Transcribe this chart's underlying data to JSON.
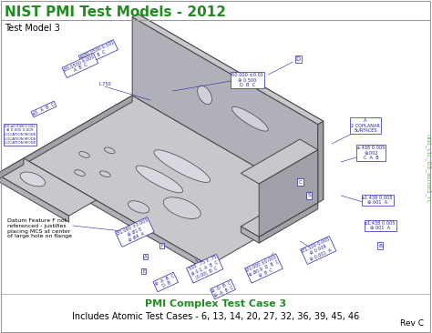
{
  "title": "NIST PMI Test Models - 2012",
  "title_color": "#228B22",
  "title_fontsize": 11,
  "subtitle": "Test Model 3",
  "subtitle_fontsize": 7,
  "footer_line1": "PMI Complex Test Case 3",
  "footer_line1_color": "#228B22",
  "footer_line1_fontsize": 8,
  "footer_line2": "Includes Atomic Test Cases - 6, 13, 14, 20, 27, 32, 36, 39, 45, 46",
  "footer_line2_fontsize": 7,
  "rev_text": "Rev C",
  "rev_fontsize": 6.5,
  "watermark_text": "nist_ctc_03_asme1_rc",
  "watermark_fontsize": 5,
  "bg_color": "#FFFFFF",
  "border_color": "#999999",
  "part_color_top": "#C8C8CC",
  "part_color_front": "#B0B0B8",
  "part_color_side": "#A0A0A8",
  "part_color_dark": "#909098",
  "part_edge_color": "#444444",
  "annotation_color": "#2222AA",
  "annotation_fontsize": 3.8,
  "note_text": "Datum Feature F not\nreferenced - justifies\nplacing MCS at center\nof large hole on flange",
  "note_fontsize": 4.5
}
